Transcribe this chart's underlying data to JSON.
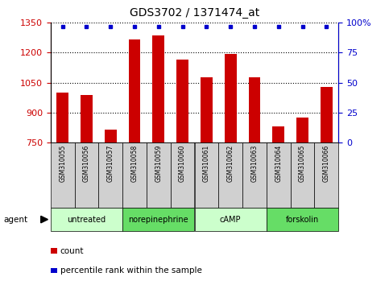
{
  "title": "GDS3702 / 1371474_at",
  "samples": [
    "GSM310055",
    "GSM310056",
    "GSM310057",
    "GSM310058",
    "GSM310059",
    "GSM310060",
    "GSM310061",
    "GSM310062",
    "GSM310063",
    "GSM310064",
    "GSM310065",
    "GSM310066"
  ],
  "bar_counts": [
    1000,
    990,
    815,
    1265,
    1285,
    1165,
    1075,
    1195,
    1075,
    830,
    875,
    1030
  ],
  "percentile_ranks": [
    97,
    97,
    97,
    97,
    97,
    97,
    97,
    97,
    97,
    97,
    97,
    97
  ],
  "ylim_left": [
    750,
    1350
  ],
  "ylim_right": [
    0,
    100
  ],
  "yticks_left": [
    750,
    900,
    1050,
    1200,
    1350
  ],
  "yticks_right": [
    0,
    25,
    50,
    75,
    100
  ],
  "bar_color": "#cc0000",
  "dot_color": "#0000cc",
  "bar_bottom": 750,
  "groups": [
    {
      "label": "untreated",
      "start": 0,
      "end": 3,
      "color": "#ccffcc"
    },
    {
      "label": "norepinephrine",
      "start": 3,
      "end": 6,
      "color": "#66dd66"
    },
    {
      "label": "cAMP",
      "start": 6,
      "end": 9,
      "color": "#ccffcc"
    },
    {
      "label": "forskolin",
      "start": 9,
      "end": 12,
      "color": "#66dd66"
    }
  ],
  "legend_count_color": "#cc0000",
  "legend_pct_color": "#0000cc",
  "sample_box_color": "#d0d0d0",
  "left_axis_color": "#cc0000",
  "right_axis_color": "#0000cc",
  "right_axis_labels": [
    "0",
    "25",
    "50",
    "75",
    "100%"
  ]
}
